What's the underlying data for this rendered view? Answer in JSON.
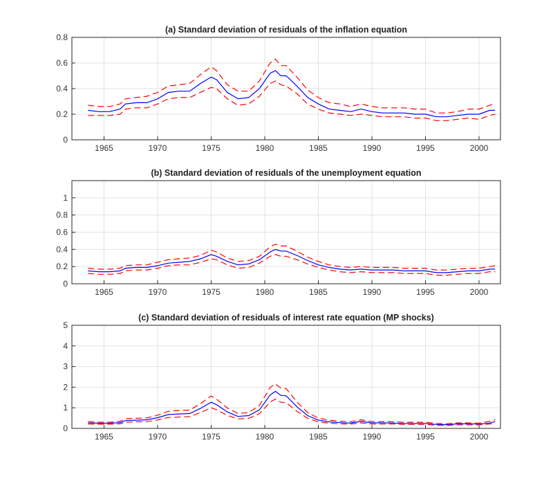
{
  "colors": {
    "median": "#0000ff",
    "band": "#ff0000"
  },
  "chart_data": [
    {
      "type": "line",
      "title": "(a) Standard deviation of residuals of the inflation equation",
      "xlabel": "",
      "ylabel": "",
      "xlim": [
        1962,
        2002
      ],
      "ylim": [
        0,
        0.8
      ],
      "xticks": [
        1965,
        1970,
        1975,
        1980,
        1985,
        1990,
        1995,
        2000
      ],
      "xtick_labels": [
        "1965",
        "1970",
        "1975",
        "1980",
        "1985",
        "1990",
        "1995",
        "2000"
      ],
      "yticks": [
        0,
        0.2,
        0.4,
        0.6,
        0.8
      ],
      "ytick_labels": [
        "0",
        "0.2",
        "0.4",
        "0.6",
        "0.8"
      ],
      "grid": true,
      "x": [
        1963.5,
        1964.5,
        1965.5,
        1966.5,
        1967,
        1968,
        1969,
        1970,
        1971,
        1972,
        1973,
        1974,
        1975,
        1975.5,
        1976.5,
        1977.5,
        1978.5,
        1979.5,
        1980.5,
        1981,
        1981.5,
        1982,
        1983,
        1984,
        1985,
        1986,
        1987,
        1988,
        1989,
        1990,
        1991,
        1992,
        1993,
        1994,
        1995,
        1996,
        1997,
        1998,
        1999,
        2000,
        2001,
        2001.5
      ],
      "series": [
        {
          "role": "median",
          "values": [
            0.23,
            0.22,
            0.22,
            0.24,
            0.28,
            0.29,
            0.29,
            0.32,
            0.37,
            0.38,
            0.38,
            0.44,
            0.49,
            0.47,
            0.37,
            0.32,
            0.33,
            0.4,
            0.52,
            0.54,
            0.5,
            0.5,
            0.42,
            0.33,
            0.28,
            0.24,
            0.23,
            0.22,
            0.24,
            0.22,
            0.21,
            0.21,
            0.21,
            0.2,
            0.2,
            0.18,
            0.18,
            0.19,
            0.2,
            0.2,
            0.23,
            0.23
          ]
        },
        {
          "role": "upper",
          "values": [
            0.27,
            0.26,
            0.26,
            0.28,
            0.32,
            0.33,
            0.34,
            0.37,
            0.42,
            0.43,
            0.44,
            0.51,
            0.57,
            0.54,
            0.43,
            0.38,
            0.38,
            0.46,
            0.6,
            0.63,
            0.58,
            0.58,
            0.49,
            0.39,
            0.33,
            0.29,
            0.28,
            0.26,
            0.28,
            0.26,
            0.25,
            0.25,
            0.25,
            0.24,
            0.24,
            0.21,
            0.21,
            0.22,
            0.24,
            0.24,
            0.27,
            0.28
          ]
        },
        {
          "role": "lower",
          "values": [
            0.19,
            0.19,
            0.19,
            0.2,
            0.24,
            0.25,
            0.25,
            0.28,
            0.32,
            0.33,
            0.33,
            0.37,
            0.41,
            0.4,
            0.32,
            0.27,
            0.28,
            0.34,
            0.44,
            0.46,
            0.43,
            0.42,
            0.36,
            0.28,
            0.24,
            0.21,
            0.2,
            0.19,
            0.2,
            0.19,
            0.18,
            0.18,
            0.18,
            0.17,
            0.17,
            0.15,
            0.15,
            0.16,
            0.17,
            0.16,
            0.19,
            0.2
          ]
        }
      ]
    },
    {
      "type": "line",
      "title": "(b) Standard deviation of residuals of the unemployment equation",
      "xlabel": "",
      "ylabel": "",
      "xlim": [
        1962,
        2002
      ],
      "ylim": [
        0,
        1.2
      ],
      "xticks": [
        1965,
        1970,
        1975,
        1980,
        1985,
        1990,
        1995,
        2000
      ],
      "xtick_labels": [
        "1965",
        "1970",
        "1975",
        "1980",
        "1985",
        "1990",
        "1995",
        "2000"
      ],
      "yticks": [
        0,
        0.2,
        0.4,
        0.6,
        0.8,
        1.0
      ],
      "ytick_labels": [
        "0",
        "0.2",
        "0.4",
        "0.6",
        "0.8",
        "1"
      ],
      "grid": true,
      "x": [
        1963.5,
        1964.5,
        1965.5,
        1966.5,
        1967,
        1968,
        1969,
        1970,
        1971,
        1972,
        1973,
        1974,
        1975,
        1975.5,
        1976.5,
        1977.5,
        1978.5,
        1979.5,
        1980.5,
        1981,
        1981.5,
        1982,
        1983,
        1984,
        1985,
        1986,
        1987,
        1988,
        1989,
        1990,
        1991,
        1992,
        1993,
        1994,
        1995,
        1996,
        1997,
        1998,
        1999,
        2000,
        2001,
        2001.5
      ],
      "series": [
        {
          "role": "median",
          "values": [
            0.15,
            0.14,
            0.14,
            0.15,
            0.18,
            0.19,
            0.19,
            0.21,
            0.24,
            0.25,
            0.26,
            0.29,
            0.34,
            0.32,
            0.26,
            0.22,
            0.23,
            0.28,
            0.37,
            0.4,
            0.38,
            0.38,
            0.33,
            0.27,
            0.22,
            0.19,
            0.17,
            0.16,
            0.17,
            0.16,
            0.16,
            0.16,
            0.15,
            0.15,
            0.15,
            0.13,
            0.13,
            0.14,
            0.15,
            0.15,
            0.17,
            0.17
          ]
        },
        {
          "role": "upper",
          "values": [
            0.18,
            0.17,
            0.17,
            0.18,
            0.21,
            0.22,
            0.22,
            0.25,
            0.28,
            0.29,
            0.3,
            0.33,
            0.39,
            0.37,
            0.3,
            0.26,
            0.27,
            0.32,
            0.43,
            0.46,
            0.44,
            0.44,
            0.38,
            0.31,
            0.26,
            0.22,
            0.2,
            0.19,
            0.2,
            0.19,
            0.19,
            0.19,
            0.18,
            0.18,
            0.18,
            0.16,
            0.16,
            0.17,
            0.18,
            0.18,
            0.2,
            0.21
          ]
        },
        {
          "role": "lower",
          "values": [
            0.12,
            0.11,
            0.11,
            0.12,
            0.15,
            0.16,
            0.16,
            0.18,
            0.21,
            0.22,
            0.22,
            0.25,
            0.29,
            0.28,
            0.22,
            0.18,
            0.19,
            0.24,
            0.32,
            0.34,
            0.32,
            0.32,
            0.28,
            0.23,
            0.19,
            0.16,
            0.14,
            0.13,
            0.14,
            0.13,
            0.13,
            0.13,
            0.12,
            0.12,
            0.12,
            0.1,
            0.1,
            0.11,
            0.12,
            0.12,
            0.14,
            0.14
          ]
        }
      ]
    },
    {
      "type": "line",
      "title": "(c) Standard deviation of residuals of interest rate equation (MP shocks)",
      "xlabel": "",
      "ylabel": "",
      "xlim": [
        1962,
        2002
      ],
      "ylim": [
        0,
        5
      ],
      "xticks": [
        1965,
        1970,
        1975,
        1980,
        1985,
        1990,
        1995,
        2000
      ],
      "xtick_labels": [
        "1965",
        "1970",
        "1975",
        "1980",
        "1985",
        "1990",
        "1995",
        "2000"
      ],
      "yticks": [
        0,
        1,
        2,
        3,
        4,
        5
      ],
      "ytick_labels": [
        "0",
        "1",
        "2",
        "3",
        "4",
        "5"
      ],
      "grid": true,
      "x": [
        1963.5,
        1964.5,
        1965.5,
        1966.5,
        1967,
        1968,
        1969,
        1970,
        1971,
        1972,
        1973,
        1974,
        1975,
        1975.5,
        1976.5,
        1977.5,
        1978.5,
        1979.5,
        1980.5,
        1981,
        1981.5,
        1982,
        1983,
        1984,
        1985,
        1986,
        1987,
        1988,
        1989,
        1990,
        1991,
        1992,
        1993,
        1994,
        1995,
        1996,
        1997,
        1998,
        1999,
        2000,
        2001,
        2001.5
      ],
      "series": [
        {
          "role": "median",
          "values": [
            0.27,
            0.25,
            0.25,
            0.28,
            0.38,
            0.4,
            0.42,
            0.52,
            0.67,
            0.7,
            0.72,
            0.97,
            1.27,
            1.15,
            0.8,
            0.58,
            0.62,
            0.9,
            1.62,
            1.8,
            1.6,
            1.58,
            1.05,
            0.62,
            0.4,
            0.32,
            0.28,
            0.26,
            0.34,
            0.27,
            0.27,
            0.26,
            0.24,
            0.24,
            0.24,
            0.19,
            0.18,
            0.22,
            0.22,
            0.21,
            0.26,
            0.33
          ]
        },
        {
          "role": "upper",
          "values": [
            0.33,
            0.3,
            0.3,
            0.34,
            0.47,
            0.49,
            0.51,
            0.64,
            0.83,
            0.87,
            0.89,
            1.2,
            1.57,
            1.42,
            0.99,
            0.72,
            0.77,
            1.11,
            1.99,
            2.15,
            1.95,
            1.93,
            1.29,
            0.77,
            0.5,
            0.4,
            0.35,
            0.32,
            0.42,
            0.33,
            0.33,
            0.32,
            0.3,
            0.3,
            0.3,
            0.24,
            0.22,
            0.27,
            0.27,
            0.26,
            0.34,
            0.42
          ]
        },
        {
          "role": "lower",
          "values": [
            0.21,
            0.2,
            0.2,
            0.22,
            0.3,
            0.32,
            0.33,
            0.41,
            0.53,
            0.55,
            0.57,
            0.77,
            1.0,
            0.91,
            0.63,
            0.46,
            0.49,
            0.71,
            1.28,
            1.42,
            1.27,
            1.25,
            0.83,
            0.49,
            0.32,
            0.25,
            0.22,
            0.21,
            0.27,
            0.21,
            0.21,
            0.21,
            0.19,
            0.19,
            0.19,
            0.15,
            0.14,
            0.17,
            0.17,
            0.17,
            0.21,
            0.26
          ]
        }
      ]
    }
  ]
}
